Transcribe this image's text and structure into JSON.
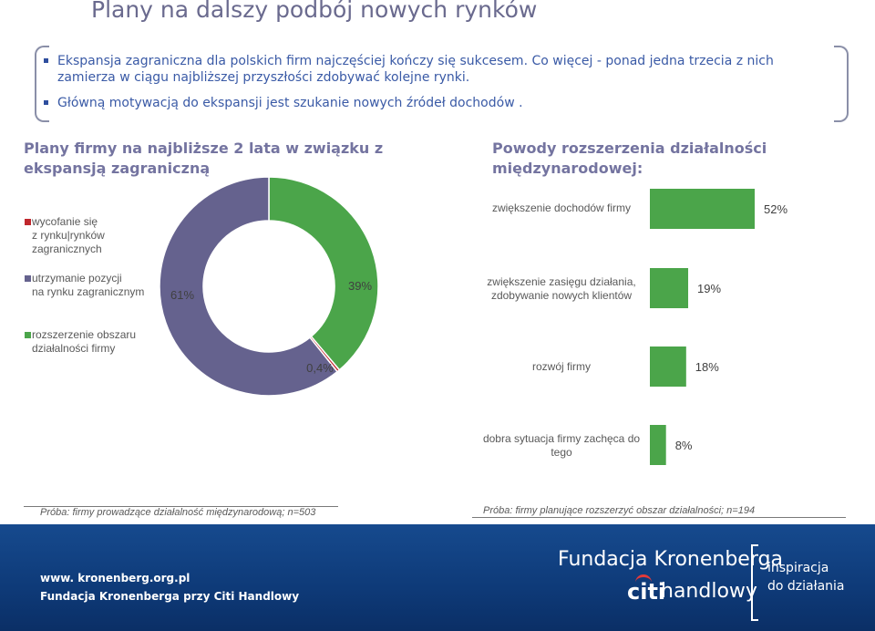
{
  "slide": {
    "title": "Plany na dalszy podbój nowych rynków",
    "bullets": [
      "Ekspansja zagraniczna dla polskich firm najczęściej kończy się sukcesem. Co więcej - ponad jedna trzecia z nich zamierza w ciągu najbliższej przyszłości zdobywać kolejne rynki.",
      "Główną motywacją do ekspansji jest szukanie nowych źródeł dochodów ."
    ]
  },
  "left_panel": {
    "title_line1": "Plany firmy na najbliższe 2 lata w związku z",
    "title_line2": "ekspansją zagraniczną",
    "sample": "Próba: firmy prowadzące działalność międzynarodową; n=503"
  },
  "right_panel": {
    "title_line1": "Powody rozszerzenia działalności",
    "title_line2": "międzynarodowej:",
    "sample": "Próba: firmy planujące rozszerzyć obszar działalności; n=194"
  },
  "chart_data": [
    {
      "type": "pie",
      "subtype": "donut",
      "title": "Plany firmy na najbliższe 2 lata w związku z ekspansją zagraniczną",
      "labels": [
        [
          "wycofanie się",
          "z rynku|rynków",
          "zagranicznych"
        ],
        [
          "utrzymanie pozycji",
          "na rynku zagranicznym"
        ],
        [
          "rozszerzenie obszaru",
          "działalności firmy"
        ]
      ],
      "values": [
        0.4,
        61,
        39
      ],
      "value_labels": [
        "0,4%",
        "61%",
        "39%"
      ],
      "colors": [
        "#c0272d",
        "#65628e",
        "#4ba54a"
      ],
      "legend": "left"
    },
    {
      "type": "bar",
      "orientation": "horizontal",
      "title": "Powody rozszerzenia działalności międzynarodowej:",
      "categories": [
        [
          "zwiększenie dochodów firmy"
        ],
        [
          "zwiększenie zasięgu działania,",
          "zdobywanie nowych klientów"
        ],
        [
          "rozwój firmy"
        ],
        [
          "dobra sytuacja firmy zachęca do",
          "tego"
        ]
      ],
      "values": [
        52,
        19,
        18,
        8
      ],
      "value_labels": [
        "52%",
        "19%",
        "18%",
        "8%"
      ],
      "color": "#4ba54a",
      "xlim": [
        0,
        52
      ]
    }
  ],
  "footer": {
    "url": "www. kronenberg.org.pl",
    "org": "Fundacja Kronenberga przy Citi Handlowy",
    "brand": "Fundacja Kronenberga",
    "citi": "citi",
    "handlowy": "handlowy",
    "tagline1": "inspiracja",
    "tagline2": "do działania"
  }
}
